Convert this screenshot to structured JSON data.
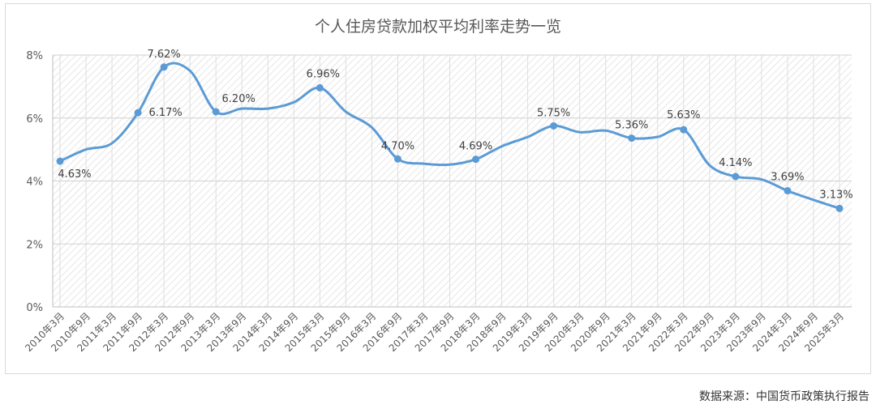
{
  "chart_data": {
    "type": "line",
    "title": "个人住房贷款加权平均利率走势一览",
    "source": "数据来源：中国货币政策执行报告",
    "ylim": [
      0,
      8
    ],
    "y_ticks": [
      "0%",
      "2%",
      "4%",
      "6%",
      "8%"
    ],
    "grid": true,
    "categories": [
      "2010年3月",
      "2010年9月",
      "2011年3月",
      "2011年9月",
      "2012年3月",
      "2012年9月",
      "2013年3月",
      "2013年9月",
      "2014年3月",
      "2014年9月",
      "2015年3月",
      "2015年9月",
      "2016年3月",
      "2016年9月",
      "2017年3月",
      "2017年9月",
      "2018年3月",
      "2018年9月",
      "2019年3月",
      "2019年9月",
      "2020年3月",
      "2020年9月",
      "2021年3月",
      "2021年9月",
      "2022年3月",
      "2022年9月",
      "2023年3月",
      "2023年9月",
      "2024年3月",
      "2024年9月",
      "2025年3月"
    ],
    "series": [
      {
        "color": "#5b9bd5",
        "values": [
          4.63,
          5.0,
          5.2,
          6.17,
          7.62,
          7.5,
          6.2,
          6.3,
          6.3,
          6.5,
          6.96,
          6.2,
          5.7,
          4.7,
          4.55,
          4.52,
          4.69,
          5.1,
          5.4,
          5.75,
          5.55,
          5.6,
          5.36,
          5.4,
          5.63,
          4.5,
          4.14,
          4.05,
          3.69,
          3.4,
          3.13
        ],
        "point_labels": {
          "0": "4.63%",
          "3": "6.17%",
          "4": "7.62%",
          "6": "6.20%",
          "10": "6.96%",
          "13": "4.70%",
          "16": "4.69%",
          "19": "5.75%",
          "22": "5.36%",
          "24": "5.63%",
          "26": "4.14%",
          "28": "3.69%",
          "30": "3.13%"
        }
      }
    ]
  }
}
